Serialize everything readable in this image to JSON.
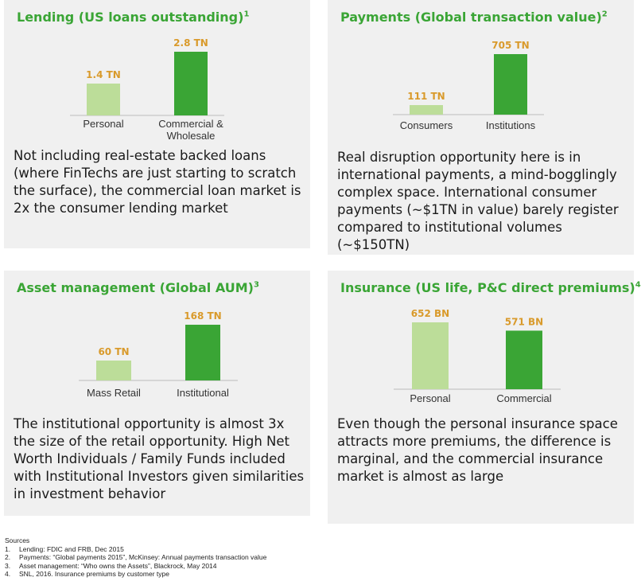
{
  "colors": {
    "title": "#3aa535",
    "light_bar": "#bcdd99",
    "dark_bar": "#3aa535",
    "value_label": "#d99a2b",
    "panel_bg": "#f0f0f0"
  },
  "panels": [
    {
      "title": "Lending (US loans outstanding)",
      "footnote": "1",
      "description": "Not including real-estate backed loans (where FinTechs are just starting to scratch the surface), the commercial loan market is 2x the consumer lending market"
    },
    {
      "title": "Payments (Global transaction value)",
      "footnote": "2",
      "description": "Real disruption opportunity here is in international payments, a mind-bogglingly complex space. International consumer payments (~$1TN in value) barely register compared to institutional volumes (~$150TN)"
    },
    {
      "title": "Asset management (Global AUM)",
      "footnote": "3",
      "description": "The institutional opportunity is almost 3x the size of the retail opportunity. High Net Worth Individuals / Family Funds included with Institutional Investors given similarities in investment behavior"
    },
    {
      "title": "Insurance (US life, P&C direct premiums)",
      "footnote": "4",
      "description": "Even though the personal insurance space attracts more premiums, the difference is marginal, and the commercial insurance market is almost as large"
    }
  ],
  "chart_data": [
    {
      "type": "bar",
      "title": "Lending (US loans outstanding)",
      "categories": [
        "Personal",
        "Commercial & Wholesale"
      ],
      "values": [
        1.4,
        2.8
      ],
      "value_labels": [
        "1.4 TN",
        "2.8 TN"
      ],
      "unit": "TN"
    },
    {
      "type": "bar",
      "title": "Payments (Global transaction value)",
      "categories": [
        "Consumers",
        "Institutions"
      ],
      "values": [
        111,
        705
      ],
      "value_labels": [
        "111 TN",
        "705 TN"
      ],
      "unit": "TN"
    },
    {
      "type": "bar",
      "title": "Asset management (Global AUM)",
      "categories": [
        "Mass Retail",
        "Institutional"
      ],
      "values": [
        60,
        168
      ],
      "value_labels": [
        "60 TN",
        "168 TN"
      ],
      "unit": "TN"
    },
    {
      "type": "bar",
      "title": "Insurance (US life, P&C direct premiums)",
      "categories": [
        "Personal",
        "Commercial"
      ],
      "values": [
        652,
        571
      ],
      "value_labels": [
        "652 BN",
        "571 BN"
      ],
      "unit": "BN"
    }
  ],
  "sources": {
    "heading": "Sources",
    "items": [
      {
        "num": "1.",
        "text": "Lending: FDIC  and FRB, Dec 2015"
      },
      {
        "num": "2.",
        "text": "Payments: “Global payments 2015”, McKinsey: Annual payments transaction value"
      },
      {
        "num": "3.",
        "text": "Asset management: “Who owns the Assets”, Blackrock, May 2014"
      },
      {
        "num": "4.",
        "text": "SNL, 2016. Insurance premiums by customer type"
      }
    ]
  }
}
